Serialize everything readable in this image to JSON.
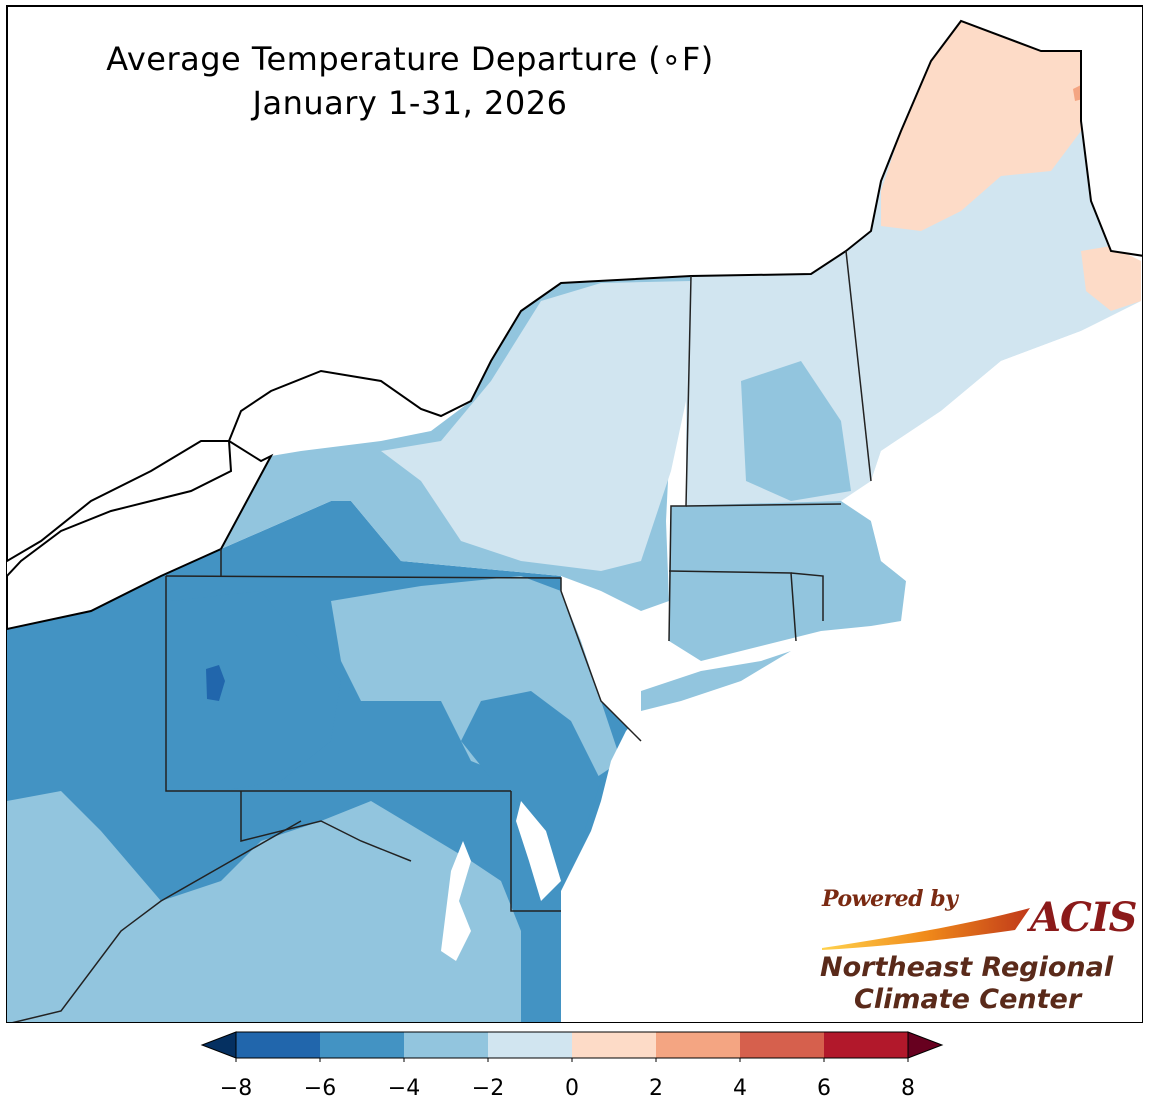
{
  "title": {
    "line1": "Average Temperature Departure (∘F)",
    "line2": "January 1-31, 2026"
  },
  "colorbar": {
    "bins": [
      {
        "from": -8,
        "to": -6,
        "color": "#2166ac"
      },
      {
        "from": -6,
        "to": -4,
        "color": "#4393c3"
      },
      {
        "from": -4,
        "to": -2,
        "color": "#92c5de"
      },
      {
        "from": -2,
        "to": 0,
        "color": "#d1e5f0"
      },
      {
        "from": 0,
        "to": 2,
        "color": "#fddbc7"
      },
      {
        "from": 2,
        "to": 4,
        "color": "#f4a582"
      },
      {
        "from": 4,
        "to": 6,
        "color": "#d6604d"
      },
      {
        "from": 6,
        "to": 8,
        "color": "#b2182b"
      }
    ],
    "under_color": "#053061",
    "over_color": "#67001f",
    "tick_labels": [
      "−8",
      "−6",
      "−4",
      "−2",
      "0",
      "2",
      "4",
      "6",
      "8"
    ]
  },
  "logo": {
    "powered_by": "Powered by",
    "acis": "ACIS",
    "line1": "Northeast Regional",
    "line2": "Climate Center"
  }
}
